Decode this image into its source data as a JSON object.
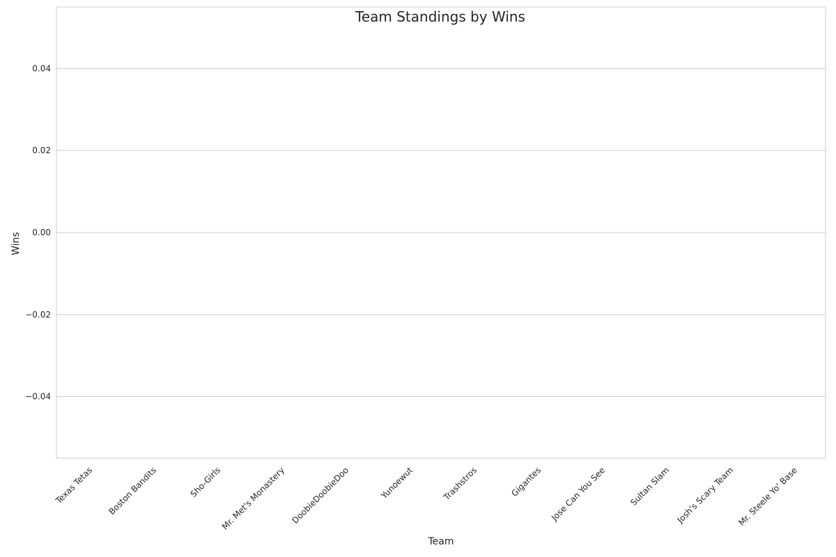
{
  "chart_data": {
    "type": "bar",
    "title": "Team Standings by Wins",
    "xlabel": "Team",
    "ylabel": "Wins",
    "categories": [
      "Texas Tetas",
      "Boston Bandits",
      "Sho-Girls",
      "Mr. Met's Monastery",
      "DoobieDoobieDoo",
      "Yunoewut",
      "Trashstros",
      "Gigantes",
      "Jose Can You See",
      "Sultan Slam",
      "Josh's Scary Team",
      "Mr. Steele Yo' Base"
    ],
    "values": [
      0,
      0,
      0,
      0,
      0,
      0,
      0,
      0,
      0,
      0,
      0,
      0
    ],
    "ylim": [
      -0.055,
      0.055
    ],
    "yticks": [
      0.04,
      0.02,
      0.0,
      -0.02,
      -0.04
    ],
    "ytick_labels": [
      "0.04",
      "0.02",
      "0.00",
      "−0.02",
      "−0.04"
    ],
    "grid": true
  }
}
